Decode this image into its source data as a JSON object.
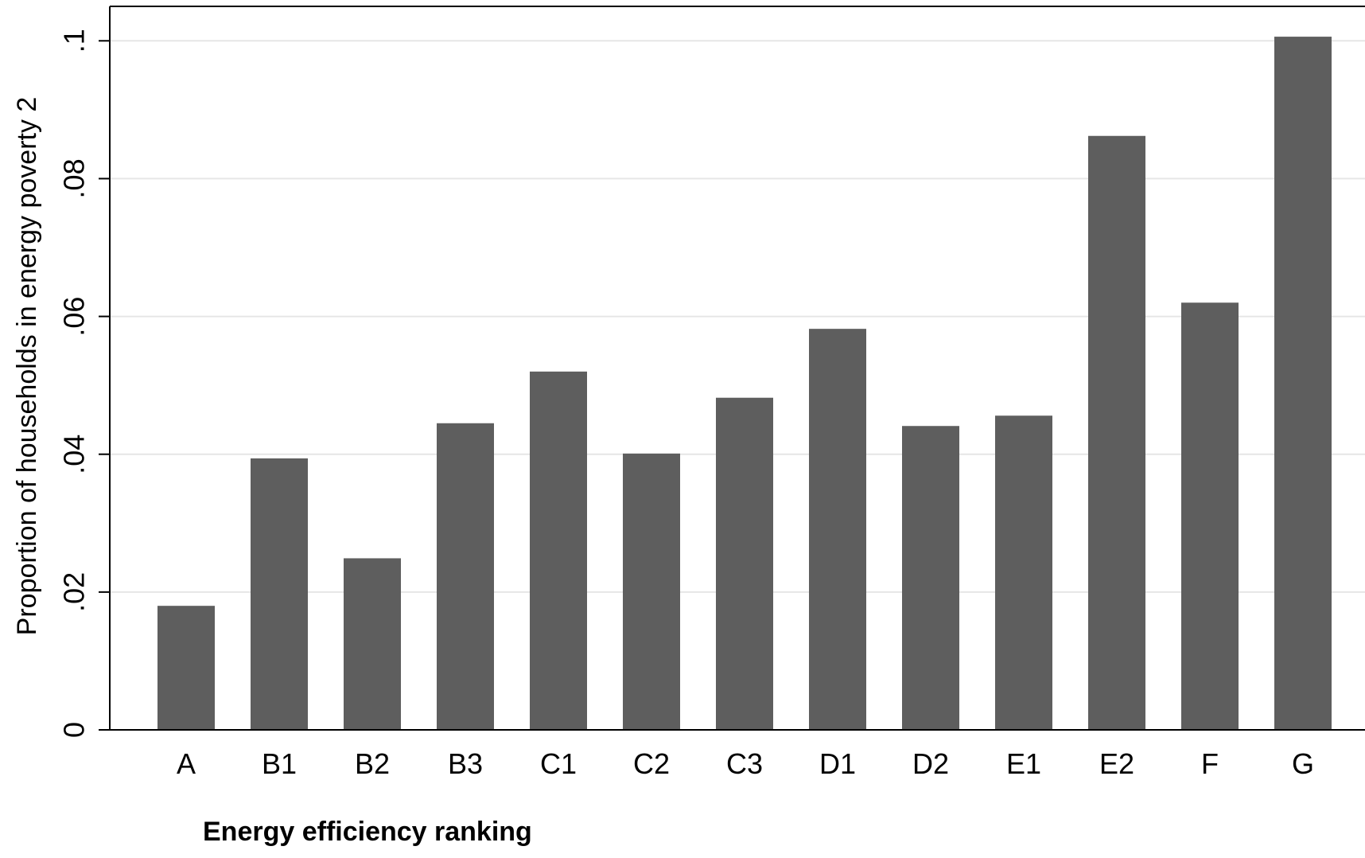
{
  "chart_data": {
    "type": "bar",
    "title": "",
    "xlabel": "Energy efficiency ranking",
    "ylabel": "Proportion of households in energy poverty 2",
    "categories": [
      "A",
      "B1",
      "B2",
      "B3",
      "C1",
      "C2",
      "C3",
      "D1",
      "D2",
      "E1",
      "E2",
      "F",
      "G"
    ],
    "values": [
      0.018,
      0.0394,
      0.0249,
      0.0445,
      0.052,
      0.0401,
      0.0482,
      0.0582,
      0.0441,
      0.0456,
      0.0862,
      0.062,
      0.1006
    ],
    "ylim": [
      0,
      0.105
    ],
    "yticks": [
      0,
      0.02,
      0.04,
      0.06,
      0.08,
      0.1
    ],
    "ytick_labels": [
      "0",
      ".02",
      ".04",
      ".06",
      ".08",
      ".1"
    ],
    "grid": true,
    "colors": {
      "bar": "#5e5e5e",
      "grid": "#e6e6e6",
      "axis": "#000000"
    }
  }
}
